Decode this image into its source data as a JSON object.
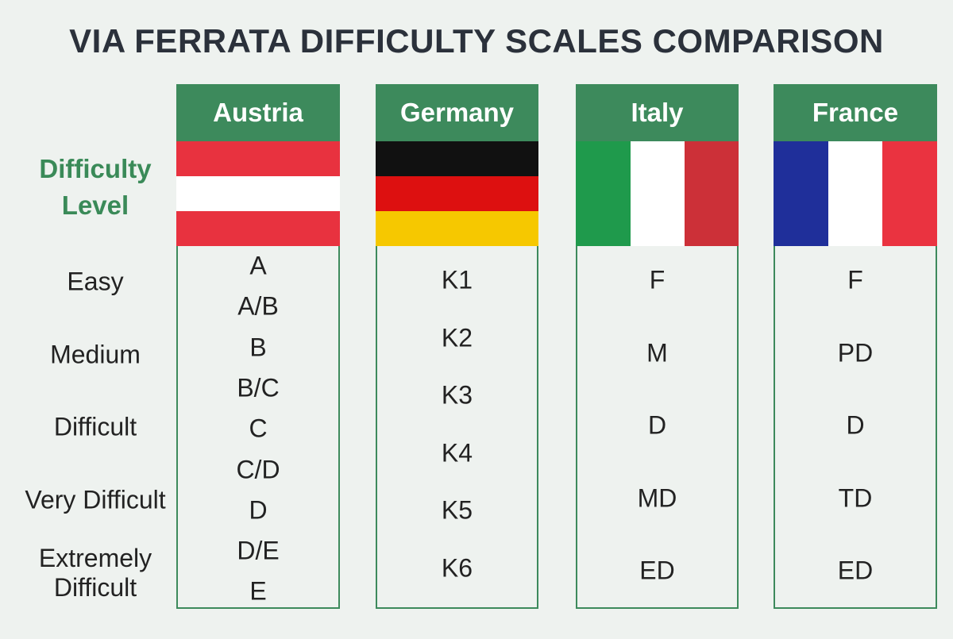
{
  "title": "VIA FERRATA DIFFICULTY SCALES COMPARISON",
  "row_header": "Difficulty Level",
  "levels": [
    "Easy",
    "Medium",
    "Difficult",
    "Very Difficult",
    "Extremely Difficult"
  ],
  "columns": [
    {
      "name": "Austria",
      "grades": [
        "A",
        "A/B",
        "B",
        "B/C",
        "C",
        "C/D",
        "D",
        "D/E",
        "E"
      ]
    },
    {
      "name": "Germany",
      "grades": [
        "K1",
        "K2",
        "K3",
        "K4",
        "K5",
        "K6"
      ]
    },
    {
      "name": "Italy",
      "grades": [
        "F",
        "M",
        "D",
        "MD",
        "ED"
      ]
    },
    {
      "name": "France",
      "grades": [
        "F",
        "PD",
        "D",
        "TD",
        "ED"
      ]
    }
  ]
}
